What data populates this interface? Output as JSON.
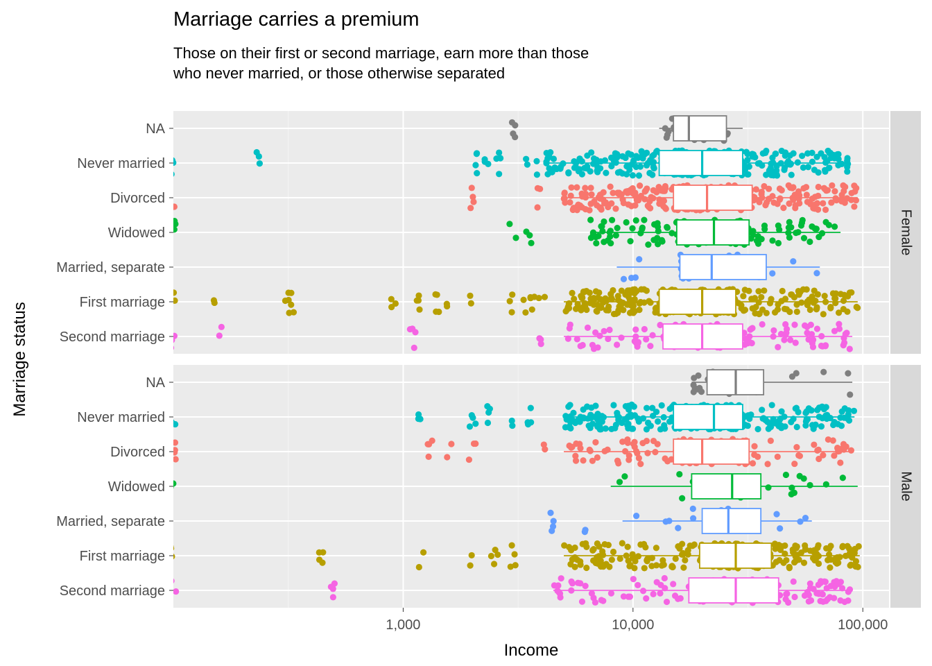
{
  "chart_data": {
    "type": "boxplot",
    "title": "Marriage carries a premium",
    "subtitle": "Those on their first or second marriage, earn more than those who never married, or those otherwise separated",
    "xlabel": "Income",
    "ylabel": "Marriage status",
    "x_scale": "log10",
    "xlim": [
      100,
      130000
    ],
    "x_ticks": [
      {
        "value": 1000,
        "label": "1,000"
      },
      {
        "value": 10000,
        "label": "10,000"
      },
      {
        "value": 100000,
        "label": "100,000"
      }
    ],
    "categories": [
      "NA",
      "Never married",
      "Divorced",
      "Widowed",
      "Married, separate",
      "First marriage",
      "Second marriage"
    ],
    "colors": {
      "NA": "#7f7f7f",
      "Never married": "#00bfc4",
      "Divorced": "#f8766d",
      "Widowed": "#00ba38",
      "Married, separate": "#619cff",
      "First marriage": "#b79f00",
      "Second marriage": "#f564e3"
    },
    "grid": true,
    "legend": "none",
    "panels": [
      {
        "facet": "Female",
        "boxes": [
          {
            "category": "NA",
            "q1": 15000,
            "median": 17500,
            "q3": 25500,
            "whisker_low": 13000,
            "whisker_high": 30000,
            "jitter": "sparse"
          },
          {
            "category": "Never married",
            "q1": 13000,
            "median": 20000,
            "q3": 30000,
            "whisker_low": 4200,
            "whisker_high": 87000,
            "jitter": "dense"
          },
          {
            "category": "Divorced",
            "q1": 15000,
            "median": 21000,
            "q3": 33000,
            "whisker_low": 5000,
            "whisker_high": 95000,
            "jitter": "dense"
          },
          {
            "category": "Widowed",
            "q1": 15500,
            "median": 22500,
            "q3": 32000,
            "whisker_low": 6500,
            "whisker_high": 80000,
            "jitter": "medium"
          },
          {
            "category": "Married, separate",
            "q1": 16000,
            "median": 22000,
            "q3": 38000,
            "whisker_low": 8500,
            "whisker_high": 65000,
            "jitter": "sparse"
          },
          {
            "category": "First marriage",
            "q1": 13000,
            "median": 20000,
            "q3": 28000,
            "whisker_low": 5000,
            "whisker_high": 95000,
            "jitter": "dense"
          },
          {
            "category": "Second marriage",
            "q1": 13500,
            "median": 20000,
            "q3": 30000,
            "whisker_low": 5000,
            "whisker_high": 90000,
            "jitter": "medium"
          }
        ]
      },
      {
        "facet": "Male",
        "boxes": [
          {
            "category": "NA",
            "q1": 21000,
            "median": 28000,
            "q3": 37000,
            "whisker_low": 18000,
            "whisker_high": 90000,
            "jitter": "sparse"
          },
          {
            "category": "Never married",
            "q1": 15000,
            "median": 22500,
            "q3": 30000,
            "whisker_low": 5000,
            "whisker_high": 92000,
            "jitter": "dense"
          },
          {
            "category": "Divorced",
            "q1": 15000,
            "median": 20000,
            "q3": 32000,
            "whisker_low": 5000,
            "whisker_high": 90000,
            "jitter": "medium"
          },
          {
            "category": "Widowed",
            "q1": 18000,
            "median": 27000,
            "q3": 36000,
            "whisker_low": 8000,
            "whisker_high": 95000,
            "jitter": "sparse"
          },
          {
            "category": "Married, separate",
            "q1": 20000,
            "median": 26000,
            "q3": 36000,
            "whisker_low": 9000,
            "whisker_high": 60000,
            "jitter": "sparse"
          },
          {
            "category": "First marriage",
            "q1": 19500,
            "median": 28000,
            "q3": 40000,
            "whisker_low": 5000,
            "whisker_high": 97000,
            "jitter": "dense"
          },
          {
            "category": "Second marriage",
            "q1": 17500,
            "median": 28000,
            "q3": 43000,
            "whisker_low": 4500,
            "whisker_high": 90000,
            "jitter": "medium"
          }
        ]
      }
    ],
    "outliers": {
      "Female": {
        "NA": [
          3000
        ],
        "Never married": [
          100,
          230,
          2100,
          2300,
          2600,
          3400,
          3700
        ],
        "Divorced": [
          100,
          2000,
          3900
        ],
        "Widowed": [
          100,
          3000,
          3500
        ],
        "Married, separate": [],
        "First marriage": [
          100,
          150,
          310,
          330,
          900,
          1150,
          1400,
          1500,
          2000,
          3000,
          3300,
          3600,
          4000
        ],
        "Second marriage": [
          100,
          160,
          1100,
          4000
        ]
      },
      "Male": {
        "NA": [],
        "Never married": [
          100,
          1200,
          2000,
          2400,
          3000,
          3600
        ],
        "Divorced": [
          100,
          1300,
          1600,
          2000,
          4000
        ],
        "Widowed": [
          100
        ],
        "Married, separate": [
          4500,
          6000
        ],
        "First marriage": [
          100,
          440,
          1200,
          2000,
          2500,
          3000
        ],
        "Second marriage": [
          100,
          500
        ]
      }
    }
  }
}
